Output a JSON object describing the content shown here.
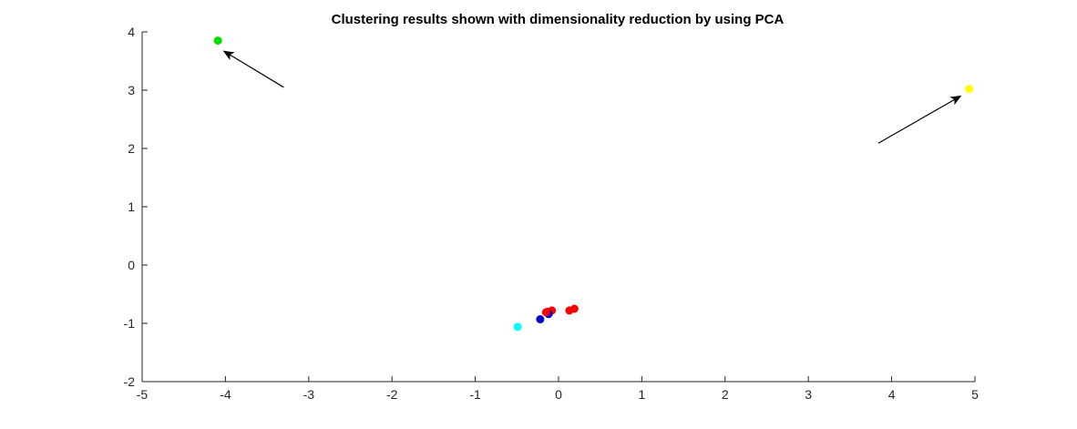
{
  "chart_data": {
    "type": "scatter",
    "title": "Clustering results shown with dimensionality reduction by using PCA",
    "xlabel": "",
    "ylabel": "",
    "xlim": [
      -5,
      5
    ],
    "ylim": [
      -2,
      4
    ],
    "x_ticks": [
      -5,
      -4,
      -3,
      -2,
      -1,
      0,
      1,
      2,
      3,
      4,
      5
    ],
    "y_ticks": [
      -2,
      -1,
      0,
      1,
      2,
      3,
      4
    ],
    "grid": false,
    "box": false,
    "points": [
      {
        "x": -4.09,
        "y": 3.85,
        "color": "#00e000"
      },
      {
        "x": 4.93,
        "y": 3.02,
        "color": "#ffff00"
      },
      {
        "x": -0.49,
        "y": -1.06,
        "color": "#00ffff"
      },
      {
        "x": -0.22,
        "y": -0.93,
        "color": "#0000cc"
      },
      {
        "x": -0.13,
        "y": -0.8,
        "color": "#ff0000"
      },
      {
        "x": -0.08,
        "y": -0.78,
        "color": "#ff0000"
      },
      {
        "x": 0.13,
        "y": -0.78,
        "color": "#ff0000"
      },
      {
        "x": 0.19,
        "y": -0.75,
        "color": "#ff0000"
      },
      {
        "x": -0.12,
        "y": -0.84,
        "color": "#0000cc"
      },
      {
        "x": -0.15,
        "y": -0.81,
        "color": "#ff0000"
      }
    ],
    "annotations": [
      {
        "type": "arrow",
        "from": [
          -3.3,
          3.05
        ],
        "to": [
          -4.02,
          3.67
        ],
        "color": "#000000"
      },
      {
        "type": "arrow",
        "from": [
          3.84,
          2.09
        ],
        "to": [
          4.83,
          2.9
        ],
        "color": "#000000"
      }
    ]
  }
}
